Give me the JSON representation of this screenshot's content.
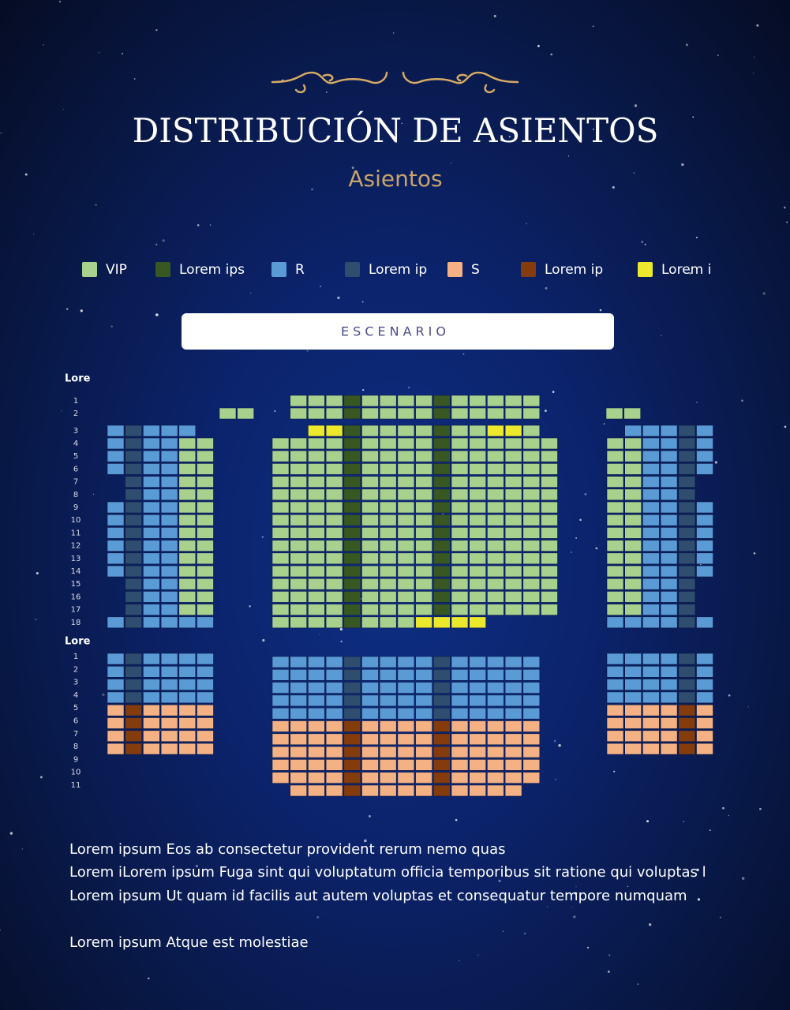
{
  "header": {
    "title": "DISTRIBUCIÓN DE ASIENTOS",
    "subtitle": "Asientos"
  },
  "legend": [
    {
      "label": "VIP",
      "color": "#a9d18e"
    },
    {
      "label": "Lorem ips",
      "color": "#385723"
    },
    {
      "label": "R",
      "color": "#5b9bd5"
    },
    {
      "label": "Lorem ip",
      "color": "#2f4d6e"
    },
    {
      "label": "S",
      "color": "#f4b183"
    },
    {
      "label": "Lorem ip",
      "color": "#843c0c"
    },
    {
      "label": "Lorem i",
      "color": "#ece82c"
    }
  ],
  "stage": "ESCENARIO",
  "sections": [
    {
      "label": "Lore",
      "rows": [
        "1",
        "2",
        "3",
        "4",
        "5",
        "6",
        "7",
        "8",
        "9",
        "10",
        "11",
        "12",
        "13",
        "14",
        "15",
        "16",
        "17",
        "18"
      ]
    },
    {
      "label": "Lore",
      "rows": [
        "1",
        "2",
        "3",
        "4",
        "5",
        "6",
        "7",
        "8",
        "9",
        "10",
        "11"
      ]
    }
  ],
  "paragraphs": [
    "Lorem ipsum Eos ab consectetur provident rerum nemo quas",
    "Lorem iLorem ipsum Fuga sint qui voluptatum officia temporibus sit ratione qui voluptas l",
    "Lorem ipsum Ut quam id facilis aut autem voluptas et consequatur tempore numquam",
    "Lorem ipsum Atque est molestiae"
  ]
}
